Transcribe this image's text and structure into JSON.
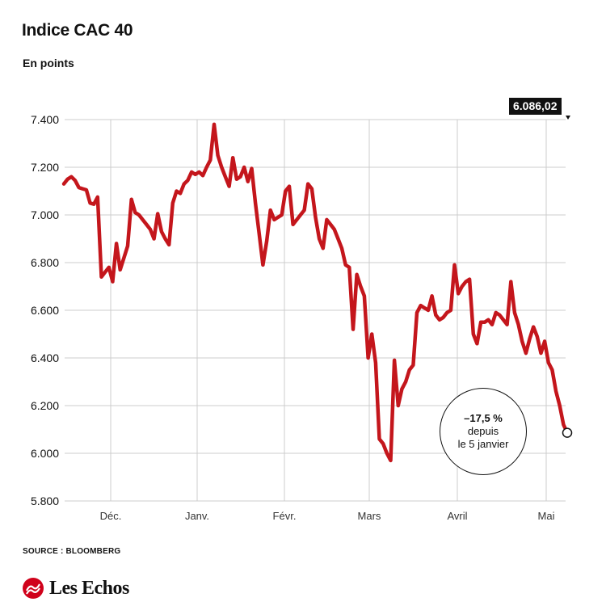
{
  "header": {
    "title": "Indice CAC 40",
    "subtitle": "En points"
  },
  "footer": {
    "source": "SOURCE : BLOOMBERG",
    "logo_text": "Les Echos"
  },
  "annotations": {
    "last_value": "6.086,02",
    "callout_pct": "–17,5 %",
    "callout_line1": "depuis",
    "callout_line2": "le 5 janvier"
  },
  "colors": {
    "line": "#c4161c",
    "grid": "#cccccc",
    "text": "#111111",
    "logo_red": "#d0021b"
  },
  "chart_data": {
    "type": "line",
    "title": "Indice CAC 40",
    "subtitle": "En points",
    "ylim": [
      5800,
      7400
    ],
    "y_ticks": [
      5800,
      6000,
      6200,
      6400,
      6600,
      6800,
      7000,
      7200,
      7400
    ],
    "y_tick_labels": [
      "5.800",
      "6.000",
      "6.200",
      "6.400",
      "6.600",
      "6.800",
      "7.000",
      "7.200",
      "7.400"
    ],
    "x_tick_labels": [
      "Déc.",
      "Janv.",
      "Févr.",
      "Mars",
      "Avril",
      "Mai"
    ],
    "grid": true,
    "series": [
      {
        "values": [
          7130,
          7150,
          7160,
          7145,
          7115,
          7110,
          7105,
          7050,
          7045,
          7075,
          6740,
          6760,
          6780,
          6720,
          6880,
          6770,
          6820,
          6870,
          7065,
          7010,
          7000,
          6980,
          6960,
          6940,
          6900,
          7005,
          6930,
          6900,
          6875,
          7050,
          7100,
          7090,
          7130,
          7145,
          7180,
          7170,
          7180,
          7165,
          7200,
          7230,
          7380,
          7250,
          7200,
          7160,
          7120,
          7240,
          7150,
          7160,
          7200,
          7140,
          7195,
          7050,
          6920,
          6790,
          6890,
          7020,
          6980,
          6990,
          7000,
          7100,
          7120,
          6960,
          6980,
          7000,
          7020,
          7130,
          7110,
          6990,
          6900,
          6860,
          6980,
          6960,
          6940,
          6900,
          6860,
          6790,
          6780,
          6520,
          6750,
          6700,
          6660,
          6400,
          6500,
          6380,
          6060,
          6040,
          6000,
          5970,
          6390,
          6200,
          6270,
          6300,
          6350,
          6370,
          6590,
          6620,
          6610,
          6600,
          6660,
          6580,
          6560,
          6570,
          6590,
          6600,
          6790,
          6670,
          6700,
          6720,
          6730,
          6500,
          6460,
          6550,
          6550,
          6560,
          6540,
          6590,
          6580,
          6560,
          6540,
          6720,
          6590,
          6540,
          6470,
          6420,
          6480,
          6530,
          6490,
          6420,
          6470,
          6380,
          6350,
          6260,
          6200,
          6120,
          6086.02
        ]
      }
    ]
  }
}
